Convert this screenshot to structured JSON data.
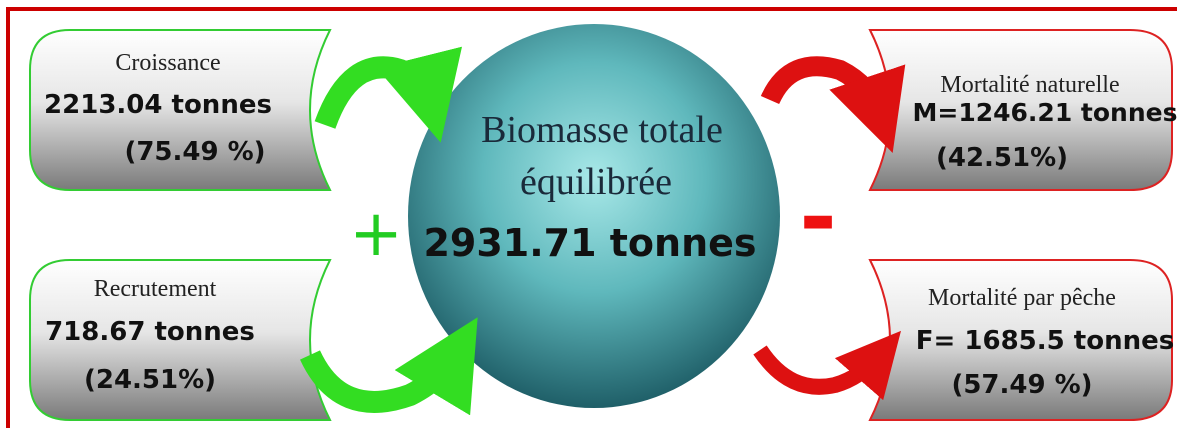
{
  "center": {
    "line1": "Biomasse totale",
    "line2": "équilibrée",
    "value": "2931.71 tonnes"
  },
  "plus_sign": "+",
  "minus_sign": "-",
  "inputs": [
    {
      "label": "Croissance",
      "value": "2213.04 tonnes",
      "percent": "(75.49 %)"
    },
    {
      "label": "Recrutement",
      "value": "718.67 tonnes",
      "percent": "(24.51%)"
    }
  ],
  "outputs": [
    {
      "label": "Mortalité naturelle",
      "value": "M=1246.21 tonnes",
      "percent": "(42.51%)"
    },
    {
      "label": "Mortalité par pêche",
      "value": "F= 1685.5 tonnes",
      "percent": "(57.49 %)"
    }
  ]
}
